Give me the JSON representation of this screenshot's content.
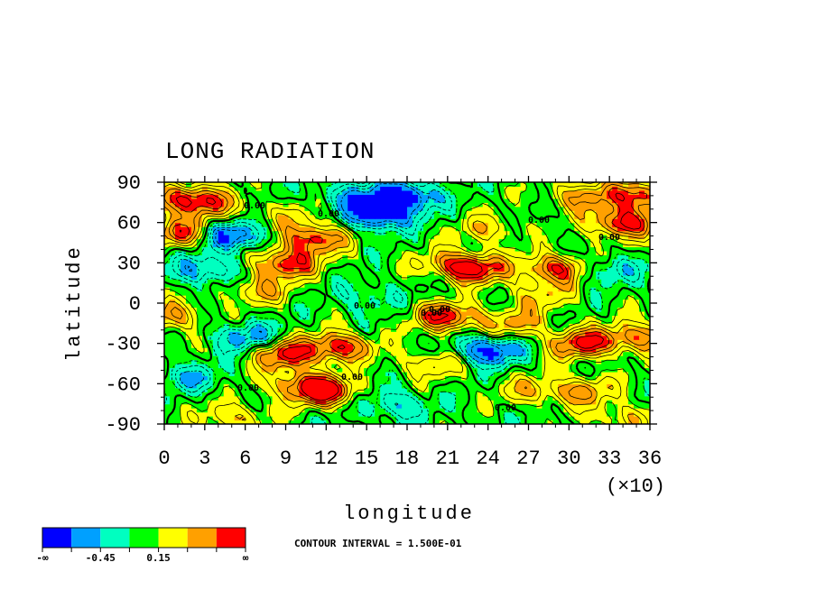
{
  "chart_data": {
    "type": "heatmap",
    "title": "LONG RADIATION",
    "xlabel": "longitude",
    "ylabel": "latitude",
    "x_multiplier_label": "(×10)",
    "xlim": [
      0,
      36
    ],
    "ylim": [
      -90,
      90
    ],
    "x_ticks": [
      "0",
      "3",
      "6",
      "9",
      "12",
      "15",
      "18",
      "21",
      "24",
      "27",
      "30",
      "33",
      "36"
    ],
    "y_ticks": [
      "90",
      "60",
      "30",
      "0",
      "-30",
      "-60",
      "-90"
    ],
    "contour_interval_text": "CONTOUR INTERVAL = 1.500E-01",
    "contour_labels": [
      "0.00",
      "0.00",
      "0.00",
      "0.00",
      "0.00",
      "0.00",
      "0.00",
      "0.00",
      "0.00",
      "0.00"
    ],
    "colorbar": {
      "colors": [
        "#0000ff",
        "#00a0ff",
        "#00ffc0",
        "#00ff00",
        "#ffff00",
        "#ffa000",
        "#ff0000"
      ],
      "labels": [
        "-∞",
        "-0.45",
        "0.15",
        "∞"
      ]
    },
    "regions": [
      {
        "lon": 1.5,
        "lat": 78,
        "value": 0.9
      },
      {
        "lon": 1.5,
        "lat": 52,
        "value": 0.8
      },
      {
        "lon": 4,
        "lat": 72,
        "value": 0.4
      },
      {
        "lon": 5,
        "lat": 50,
        "value": -0.9
      },
      {
        "lon": 9,
        "lat": 30,
        "value": 0.9
      },
      {
        "lon": 11,
        "lat": 48,
        "value": 0.9
      },
      {
        "lon": 9.5,
        "lat": 65,
        "value": 0.3
      },
      {
        "lon": 16,
        "lat": 66,
        "value": -1.0
      },
      {
        "lon": 18,
        "lat": 80,
        "value": -0.9
      },
      {
        "lon": 14,
        "lat": 80,
        "value": -0.5
      },
      {
        "lon": 21,
        "lat": 30,
        "value": 0.4
      },
      {
        "lon": 23,
        "lat": 26,
        "value": 0.9
      },
      {
        "lon": 24,
        "lat": 55,
        "value": 0.4
      },
      {
        "lon": 29,
        "lat": 26,
        "value": 0.9
      },
      {
        "lon": 31,
        "lat": 80,
        "value": 0.6
      },
      {
        "lon": 34,
        "lat": 60,
        "value": 1.0
      },
      {
        "lon": 35.5,
        "lat": 80,
        "value": 0.9
      },
      {
        "lon": 3,
        "lat": 25,
        "value": -0.6
      },
      {
        "lon": 6,
        "lat": -25,
        "value": -0.6
      },
      {
        "lon": 9,
        "lat": -38,
        "value": 0.9
      },
      {
        "lon": 10,
        "lat": -60,
        "value": 0.6
      },
      {
        "lon": 12,
        "lat": -66,
        "value": 0.9
      },
      {
        "lon": 2,
        "lat": -55,
        "value": -0.4
      },
      {
        "lon": 21,
        "lat": -10,
        "value": 0.9
      },
      {
        "lon": 20,
        "lat": -45,
        "value": 0.5
      },
      {
        "lon": 24,
        "lat": -35,
        "value": -0.9
      },
      {
        "lon": 27,
        "lat": -65,
        "value": 0.4
      },
      {
        "lon": 31,
        "lat": -65,
        "value": 0.6
      },
      {
        "lon": 31,
        "lat": -30,
        "value": 0.9
      },
      {
        "lon": 35,
        "lat": -25,
        "value": 0.7
      },
      {
        "lon": 5,
        "lat": -85,
        "value": 0.5
      },
      {
        "lon": 34,
        "lat": -85,
        "value": 0.4
      },
      {
        "lon": 17,
        "lat": -75,
        "value": -0.5
      },
      {
        "lon": 13,
        "lat": -32,
        "value": 0.9
      },
      {
        "lon": 7,
        "lat": 10,
        "value": 0.5
      },
      {
        "lon": 28,
        "lat": 5,
        "value": 0.4
      },
      {
        "lon": 15,
        "lat": 5,
        "value": -0.3
      },
      {
        "lon": 33,
        "lat": 25,
        "value": -0.4
      },
      {
        "lon": 26,
        "lat": -15,
        "value": 0.5
      },
      {
        "lon": 0.5,
        "lat": -10,
        "value": 0.6
      }
    ]
  }
}
